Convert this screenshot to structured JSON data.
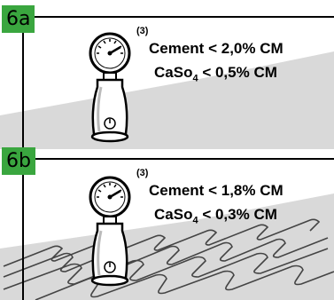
{
  "panels": [
    {
      "label": "6a",
      "note": "(3)",
      "lines": [
        {
          "material": "Cement",
          "material_sub": "",
          "limit": "< 2,0% CM"
        },
        {
          "material": "CaSo",
          "material_sub": "4",
          "limit": "< 0,5% CM"
        }
      ],
      "floor": "plain screed"
    },
    {
      "label": "6b",
      "note": "(3)",
      "lines": [
        {
          "material": "Cement",
          "material_sub": "",
          "limit": "< 1,8% CM"
        },
        {
          "material": "CaSo",
          "material_sub": "4",
          "limit": "< 0,3% CM"
        }
      ],
      "floor": "screed with underfloor heating pipes"
    }
  ],
  "colors": {
    "badge": "#3aa63f",
    "floor": "#d9d9d9",
    "frame": "#000000"
  },
  "icons": [
    "pressure-gauge-icon",
    "power-button-icon",
    "heating-pipe-pattern"
  ]
}
